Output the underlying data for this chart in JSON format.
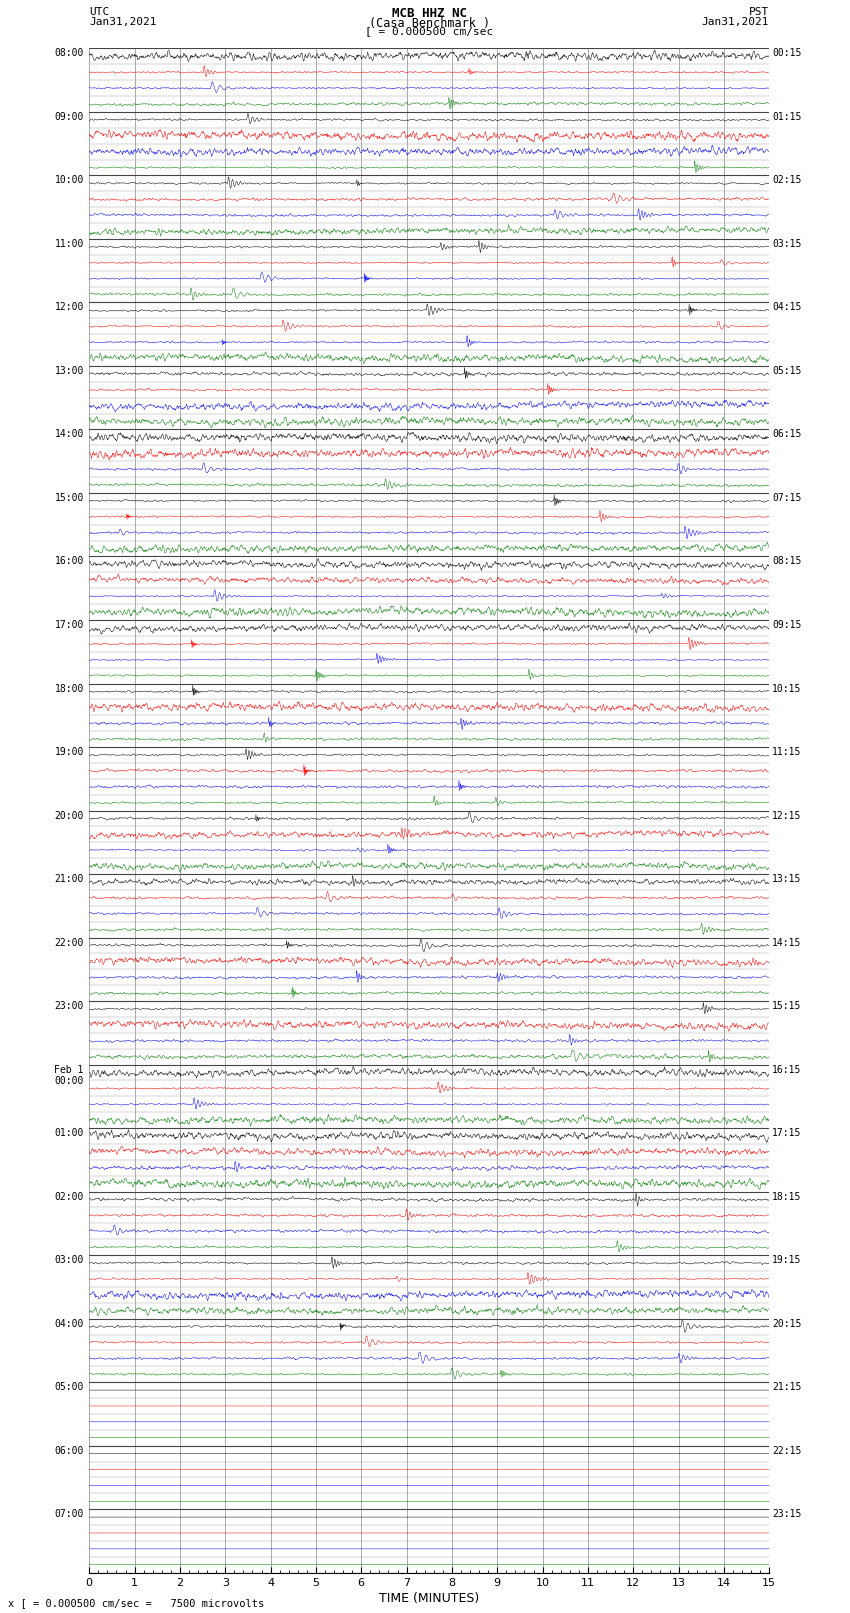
{
  "title_line1": "MCB HHZ NC",
  "title_line2": "(Casa Benchmark )",
  "title_line3": "[ = 0.000500 cm/sec",
  "left_label_top": "UTC",
  "left_label_date": "Jan31,2021",
  "right_label_top": "PST",
  "right_label_date": "Jan31,2021",
  "xlabel": "TIME (MINUTES)",
  "bottom_note": "x [ = 0.000500 cm/sec =   7500 microvolts",
  "xlim": [
    0,
    15
  ],
  "xticks": [
    0,
    1,
    2,
    3,
    4,
    5,
    6,
    7,
    8,
    9,
    10,
    11,
    12,
    13,
    14,
    15
  ],
  "trace_colors": [
    "black",
    "red",
    "blue",
    "green"
  ],
  "bg_color": "white",
  "grid_color": "#888888",
  "hline_color": "#444444",
  "seed": 42,
  "utc_labels": [
    "08:00",
    "09:00",
    "10:00",
    "11:00",
    "12:00",
    "13:00",
    "14:00",
    "15:00",
    "16:00",
    "17:00",
    "18:00",
    "19:00",
    "20:00",
    "21:00",
    "22:00",
    "23:00",
    "Feb 1\n00:00",
    "01:00",
    "02:00",
    "03:00",
    "04:00",
    "05:00",
    "06:00",
    "07:00"
  ],
  "pst_labels": [
    "00:15",
    "01:15",
    "02:15",
    "03:15",
    "04:15",
    "05:15",
    "06:15",
    "07:15",
    "08:15",
    "09:15",
    "10:15",
    "11:15",
    "12:15",
    "13:15",
    "14:15",
    "15:15",
    "16:15",
    "17:15",
    "18:15",
    "19:15",
    "20:15",
    "21:15",
    "22:15",
    "23:15"
  ],
  "num_hours": 24,
  "traces_per_hour": 4,
  "active_hours": 21,
  "comment": "hours 0-20 have trace data (08:00 to 04:00 UTC), hours 21-23 are empty (05:00-07:00)"
}
